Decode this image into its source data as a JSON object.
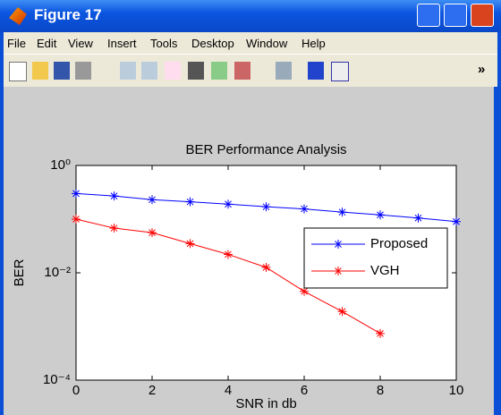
{
  "window": {
    "title": "Figure 17",
    "menu": [
      "File",
      "Edit",
      "View",
      "Insert",
      "Tools",
      "Desktop",
      "Window",
      "Help"
    ],
    "toolbar_more": "»"
  },
  "chart_data": {
    "type": "line",
    "title": "BER Performance Analysis",
    "x_label": "SNR in db",
    "y_label": "BER",
    "xlim": [
      0,
      10
    ],
    "xticks": [
      0,
      2,
      4,
      6,
      8,
      10
    ],
    "ylim": [
      0.0001,
      1
    ],
    "y_log": true,
    "yticks": [
      {
        "value": 0.0001,
        "label": "10⁻⁴"
      },
      {
        "value": 0.01,
        "label": "10⁻²"
      },
      {
        "value": 1,
        "label": "10⁰"
      }
    ],
    "grid": false,
    "legend": "east",
    "series": [
      {
        "name": "Proposed",
        "color": "#0000ff",
        "x": [
          0,
          1,
          2,
          3,
          4,
          5,
          6,
          7,
          8,
          9,
          10
        ],
        "values": [
          0.3,
          0.27,
          0.23,
          0.21,
          0.19,
          0.17,
          0.155,
          0.135,
          0.12,
          0.105,
          0.09
        ]
      },
      {
        "name": "VGH",
        "color": "#ff0000",
        "x": [
          0,
          1,
          2,
          3,
          4,
          5,
          6,
          7,
          8
        ],
        "values": [
          0.1,
          0.068,
          0.056,
          0.035,
          0.022,
          0.0126,
          0.0045,
          0.0019,
          0.00074
        ]
      }
    ]
  }
}
